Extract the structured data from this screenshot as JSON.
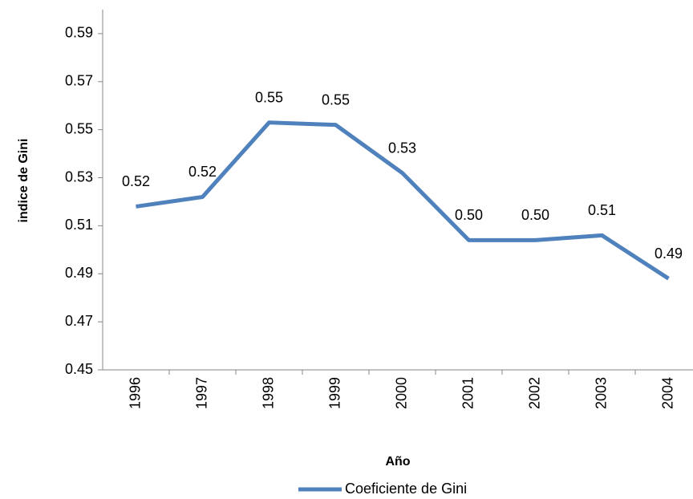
{
  "chart_data": {
    "type": "line",
    "categories": [
      "1996",
      "1997",
      "1998",
      "1999",
      "2000",
      "2001",
      "2002",
      "2003",
      "2004"
    ],
    "series": [
      {
        "name": "Coeficiente de Gini",
        "color": "#4f81bd",
        "values": [
          0.518,
          0.522,
          0.553,
          0.552,
          0.532,
          0.504,
          0.504,
          0.506,
          0.488
        ],
        "value_labels": [
          "0.52",
          "0.52",
          "0.55",
          "0.55",
          "0.53",
          "0.50",
          "0.50",
          "0.51",
          "0.49"
        ]
      }
    ],
    "ylim": [
      0.45,
      0.6
    ],
    "yticks": [
      0.45,
      0.47,
      0.49,
      0.51,
      0.53,
      0.55,
      0.57,
      0.59
    ],
    "x_label": "Año",
    "y_label": "indice de Gini",
    "legend": "bottom"
  }
}
